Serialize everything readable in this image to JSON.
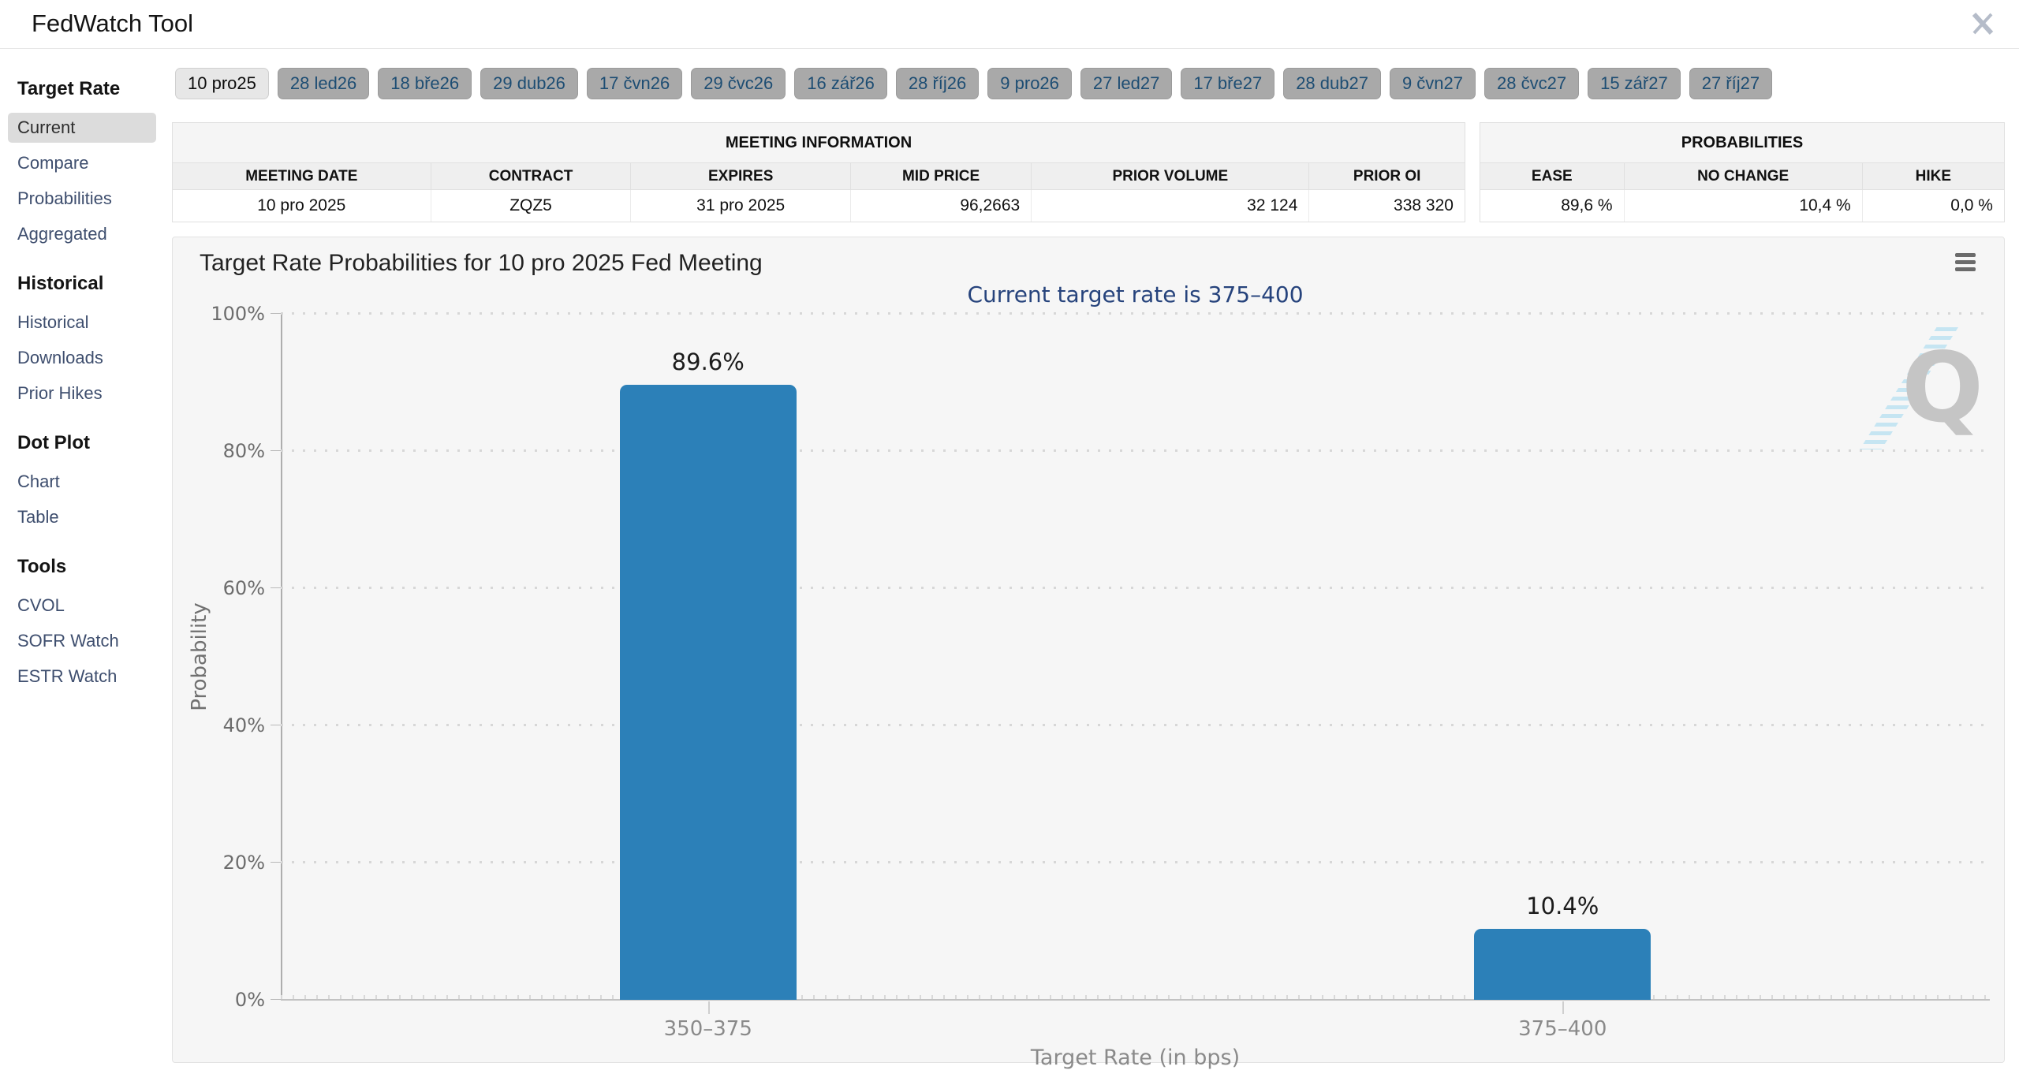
{
  "header": {
    "title": "FedWatch Tool"
  },
  "tabs": [
    {
      "label": "10 pro25",
      "active": true
    },
    {
      "label": "28 led26",
      "active": false
    },
    {
      "label": "18 bře26",
      "active": false
    },
    {
      "label": "29 dub26",
      "active": false
    },
    {
      "label": "17 čvn26",
      "active": false
    },
    {
      "label": "29 čvc26",
      "active": false
    },
    {
      "label": "16 zář26",
      "active": false
    },
    {
      "label": "28 říj26",
      "active": false
    },
    {
      "label": "9 pro26",
      "active": false
    },
    {
      "label": "27 led27",
      "active": false
    },
    {
      "label": "17 bře27",
      "active": false
    },
    {
      "label": "28 dub27",
      "active": false
    },
    {
      "label": "9 čvn27",
      "active": false
    },
    {
      "label": "28 čvc27",
      "active": false
    },
    {
      "label": "15 zář27",
      "active": false
    },
    {
      "label": "27 říj27",
      "active": false
    }
  ],
  "sidebar": {
    "sections": [
      {
        "heading": "Target Rate",
        "items": [
          "Current",
          "Compare",
          "Probabilities",
          "Aggregated"
        ],
        "active_item": "Current"
      },
      {
        "heading": "Historical",
        "items": [
          "Historical",
          "Downloads",
          "Prior Hikes"
        ]
      },
      {
        "heading": "Dot Plot",
        "items": [
          "Chart",
          "Table"
        ]
      },
      {
        "heading": "Tools",
        "items": [
          "CVOL",
          "SOFR Watch",
          "ESTR Watch"
        ]
      }
    ]
  },
  "meeting_info": {
    "title": "MEETING INFORMATION",
    "columns": [
      "MEETING DATE",
      "CONTRACT",
      "EXPIRES",
      "MID PRICE",
      "PRIOR VOLUME",
      "PRIOR OI"
    ],
    "row": [
      "10 pro 2025",
      "ZQZ5",
      "31 pro 2025",
      "96,2663",
      "32 124",
      "338 320"
    ]
  },
  "probabilities": {
    "title": "PROBABILITIES",
    "columns": [
      "EASE",
      "NO CHANGE",
      "HIKE"
    ],
    "row": [
      "89,6 %",
      "10,4 %",
      "0,0 %"
    ]
  },
  "chart_data": {
    "type": "bar",
    "title": "Target Rate Probabilities for 10 pro 2025 Fed Meeting",
    "subtitle": "Current target rate is 375–400",
    "categories": [
      "350–375",
      "375–400"
    ],
    "values": [
      89.6,
      10.4
    ],
    "value_labels": [
      "89.6%",
      "10.4%"
    ],
    "xlabel": "Target Rate (in bps)",
    "ylabel": "Probability",
    "ylim": [
      0,
      100
    ],
    "yticks": [
      0,
      20,
      40,
      60,
      80,
      100
    ],
    "ytick_labels": [
      "0%",
      "20%",
      "40%",
      "60%",
      "80%",
      "100%"
    ],
    "grid": "dotted-horizontal",
    "legend": "none",
    "bar_color": "#2c80b8",
    "watermark_letter": "Q"
  }
}
